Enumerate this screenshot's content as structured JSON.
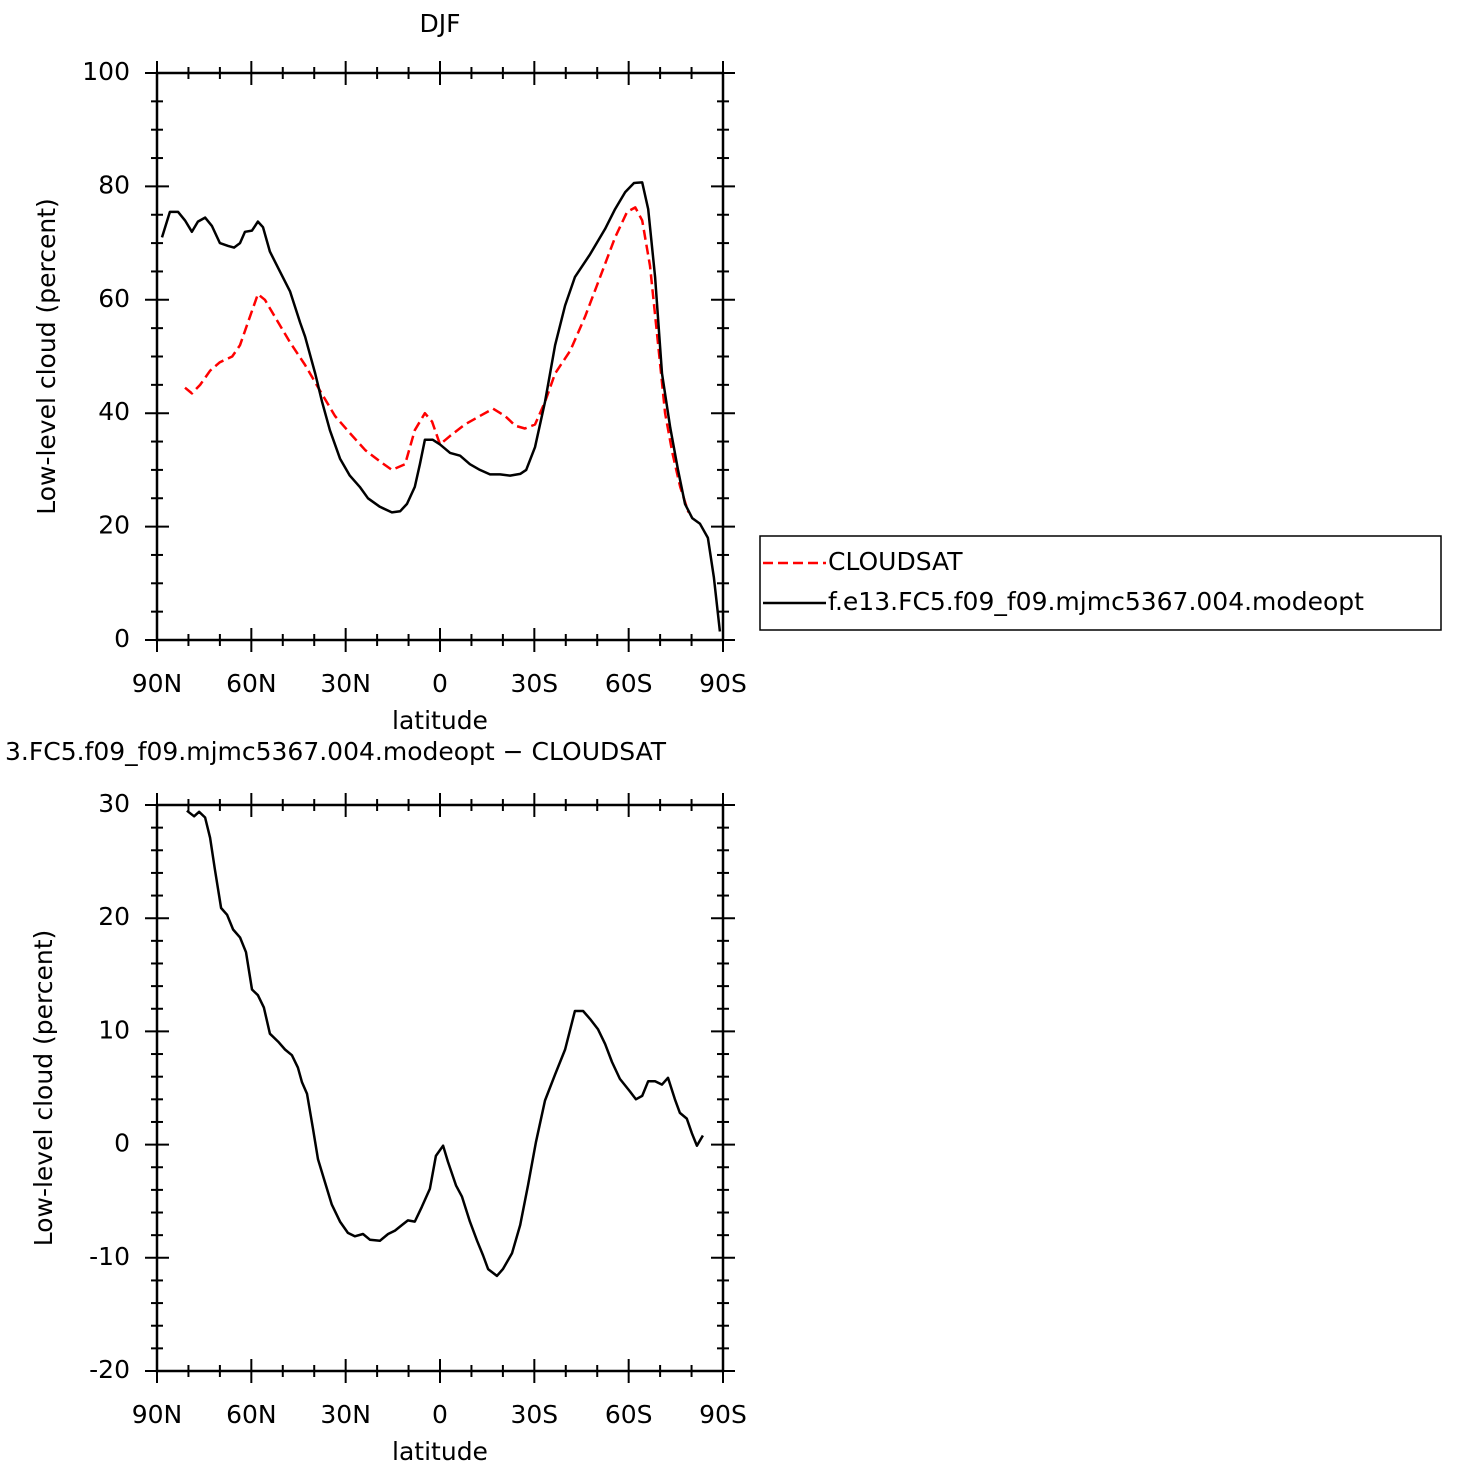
{
  "chart_data": [
    {
      "type": "line",
      "title": "DJF",
      "xlabel": "latitude",
      "ylabel": "Low-level cloud (percent)",
      "xlim": [
        90,
        -90
      ],
      "ylim": [
        0,
        100
      ],
      "xticks": [
        {
          "value": 90,
          "label": "90N"
        },
        {
          "value": 60,
          "label": "60N"
        },
        {
          "value": 30,
          "label": "30N"
        },
        0,
        {
          "value": -30,
          "label": "30S"
        },
        {
          "value": -60,
          "label": "60S"
        },
        {
          "value": -90,
          "label": "90S"
        }
      ],
      "xticks_minor": [
        80,
        70,
        50,
        40,
        20,
        10,
        -10,
        -20,
        -40,
        -50,
        -70,
        -80
      ],
      "yticks": [
        0,
        20,
        40,
        60,
        80,
        100
      ],
      "yticks_minor": [
        5,
        10,
        15,
        25,
        30,
        35,
        45,
        50,
        55,
        65,
        70,
        75,
        85,
        90,
        95
      ],
      "legend": "right",
      "series": [
        {
          "name": "CLOUDSAT",
          "color": "#ff0000",
          "dash": true,
          "x": [
            81.1,
            78.9,
            76.3,
            73.1,
            70,
            66.1,
            63.6,
            61.1,
            57.9,
            55.7,
            52.5,
            47.7,
            42.9,
            38.2,
            33.4,
            28.7,
            23.8,
            19.1,
            15.3,
            11.1,
            8,
            4.8,
            2.5,
            0,
            -3.2,
            -7.9,
            -12.7,
            -16.9,
            -20.7,
            -23.9,
            -27,
            -30.2,
            -33.4,
            -36.6,
            -41.4,
            -46.1,
            -50.9,
            -55.7,
            -59.5,
            -62.1,
            -64.3,
            -66.8,
            -69.4,
            -71.6,
            -73.9,
            -76.4,
            -79
          ],
          "values": [
            44.5,
            43.5,
            45,
            47.5,
            49,
            50,
            52,
            56,
            61,
            60,
            57,
            52.5,
            48.5,
            44,
            39.5,
            36.5,
            33.5,
            31.5,
            30,
            31,
            37,
            40,
            38.5,
            34.5,
            36,
            38,
            39.5,
            40.8,
            39.5,
            37.8,
            37.3,
            38,
            42,
            47,
            51,
            57,
            64,
            71,
            75.5,
            76.3,
            74,
            66,
            52,
            40,
            33,
            27,
            22.5
          ]
        },
        {
          "name": "f.e13.FC5.f09_f09.mjmc5367.004.modeopt",
          "color": "#000000",
          "dash": false,
          "x": [
            88.4,
            85.9,
            83.3,
            81.1,
            78.9,
            77,
            74.7,
            72.5,
            70,
            67.4,
            65.5,
            63.6,
            62,
            59.8,
            57.9,
            56.3,
            54.1,
            50.9,
            47.7,
            44.5,
            42.9,
            39.7,
            37.5,
            35,
            31.8,
            28.7,
            25.5,
            22.9,
            19.1,
            15.3,
            12.7,
            10.5,
            8,
            6.4,
            4.8,
            2.3,
            0,
            -3.2,
            -6.4,
            -9.5,
            -12.7,
            -15.9,
            -19.1,
            -22.3,
            -25.5,
            -27.4,
            -30.2,
            -33.4,
            -36.6,
            -39.8,
            -42.9,
            -47.7,
            -52.5,
            -55.7,
            -58.9,
            -61.7,
            -64.3,
            -66.2,
            -68.4,
            -70.6,
            -73.2,
            -75.7,
            -77.9,
            -80.2,
            -82.7,
            -85.2,
            -87.1,
            -89
          ],
          "values": [
            71,
            75.5,
            75.5,
            74,
            72,
            73.8,
            74.5,
            73,
            70,
            69.5,
            69.2,
            70,
            72,
            72.2,
            73.8,
            72.8,
            68.5,
            65,
            61.5,
            56,
            53.5,
            47,
            42,
            37,
            32,
            29,
            27,
            25,
            23.5,
            22.5,
            22.7,
            24,
            27,
            31,
            35.3,
            35.3,
            34.5,
            33,
            32.5,
            31,
            30,
            29.2,
            29.2,
            29,
            29.3,
            30,
            34,
            42,
            52,
            59,
            64,
            68,
            72.5,
            76,
            79,
            80.6,
            80.7,
            76,
            64,
            47,
            37.5,
            30,
            24,
            21.5,
            20.5,
            18,
            11,
            1.5
          ]
        }
      ]
    },
    {
      "type": "line",
      "title": "3.FC5.f09_f09.mjmc5367.004.modeopt − CLOUDSAT",
      "xlabel": "latitude",
      "ylabel": "Low-level cloud (percent)",
      "xlim": [
        90,
        -90
      ],
      "ylim": [
        -20,
        30
      ],
      "xticks": [
        {
          "value": 90,
          "label": "90N"
        },
        {
          "value": 60,
          "label": "60N"
        },
        {
          "value": 30,
          "label": "30N"
        },
        0,
        {
          "value": -30,
          "label": "30S"
        },
        {
          "value": -60,
          "label": "60S"
        },
        {
          "value": -90,
          "label": "90S"
        }
      ],
      "xticks_minor": [
        80,
        70,
        50,
        40,
        20,
        10,
        -10,
        -20,
        -40,
        -50,
        -70,
        -80
      ],
      "yticks": [
        -20,
        -10,
        0,
        10,
        20,
        30
      ],
      "yticks_minor": [
        -18,
        -16,
        -14,
        -12,
        -8,
        -6,
        -4,
        -2,
        2,
        4,
        6,
        8,
        12,
        14,
        16,
        18,
        22,
        24,
        26,
        28
      ],
      "series": [
        {
          "color": "#000000",
          "dash": false,
          "x": [
            80.5,
            78.2,
            76.6,
            74.7,
            73.1,
            71.6,
            69.6,
            67.7,
            65.8,
            63.6,
            61.7,
            59.8,
            57.9,
            56,
            54.1,
            51.5,
            49.3,
            47.1,
            45.2,
            43.9,
            42.3,
            40.4,
            38.8,
            36.6,
            34.4,
            31.8,
            29.3,
            27.1,
            24.5,
            22.3,
            19.1,
            16.5,
            14.3,
            12.1,
            10.2,
            8,
            5.8,
            3.2,
            1.3,
            -1,
            -2.5,
            -5.1,
            -7,
            -9.5,
            -11.8,
            -13.7,
            -15.3,
            -18.1,
            -20,
            -22.9,
            -25.5,
            -28,
            -30.5,
            -33.4,
            -36.6,
            -39.8,
            -42.9,
            -45.5,
            -47.7,
            -50.2,
            -52.5,
            -54.7,
            -57.2,
            -60.4,
            -62.3,
            -64.3,
            -66.2,
            -68.4,
            -70.6,
            -72.5,
            -74.7,
            -76.3,
            -78.5,
            -80.1,
            -81.7,
            -83.6
          ],
          "values": [
            29.5,
            29,
            29.4,
            28.9,
            27.1,
            24.3,
            20.9,
            20.3,
            19,
            18.3,
            17,
            13.7,
            13.2,
            12.1,
            9.8,
            9.1,
            8.4,
            7.9,
            6.8,
            5.5,
            4.5,
            1.4,
            -1.3,
            -3.3,
            -5.3,
            -6.8,
            -7.8,
            -8.1,
            -7.9,
            -8.4,
            -8.5,
            -7.9,
            -7.6,
            -7.1,
            -6.7,
            -6.8,
            -5.5,
            -3.9,
            -1,
            -0.1,
            -1.5,
            -3.6,
            -4.6,
            -6.8,
            -8.5,
            -9.8,
            -11,
            -11.6,
            -11,
            -9.6,
            -7.1,
            -3.6,
            0.2,
            3.9,
            6.2,
            8.4,
            11.8,
            11.8,
            11.1,
            10.2,
            8.9,
            7.3,
            5.8,
            4.7,
            4,
            4.3,
            5.6,
            5.6,
            5.3,
            5.9,
            4,
            2.8,
            2.3,
            1,
            -0.1,
            0.8
          ]
        }
      ]
    }
  ]
}
